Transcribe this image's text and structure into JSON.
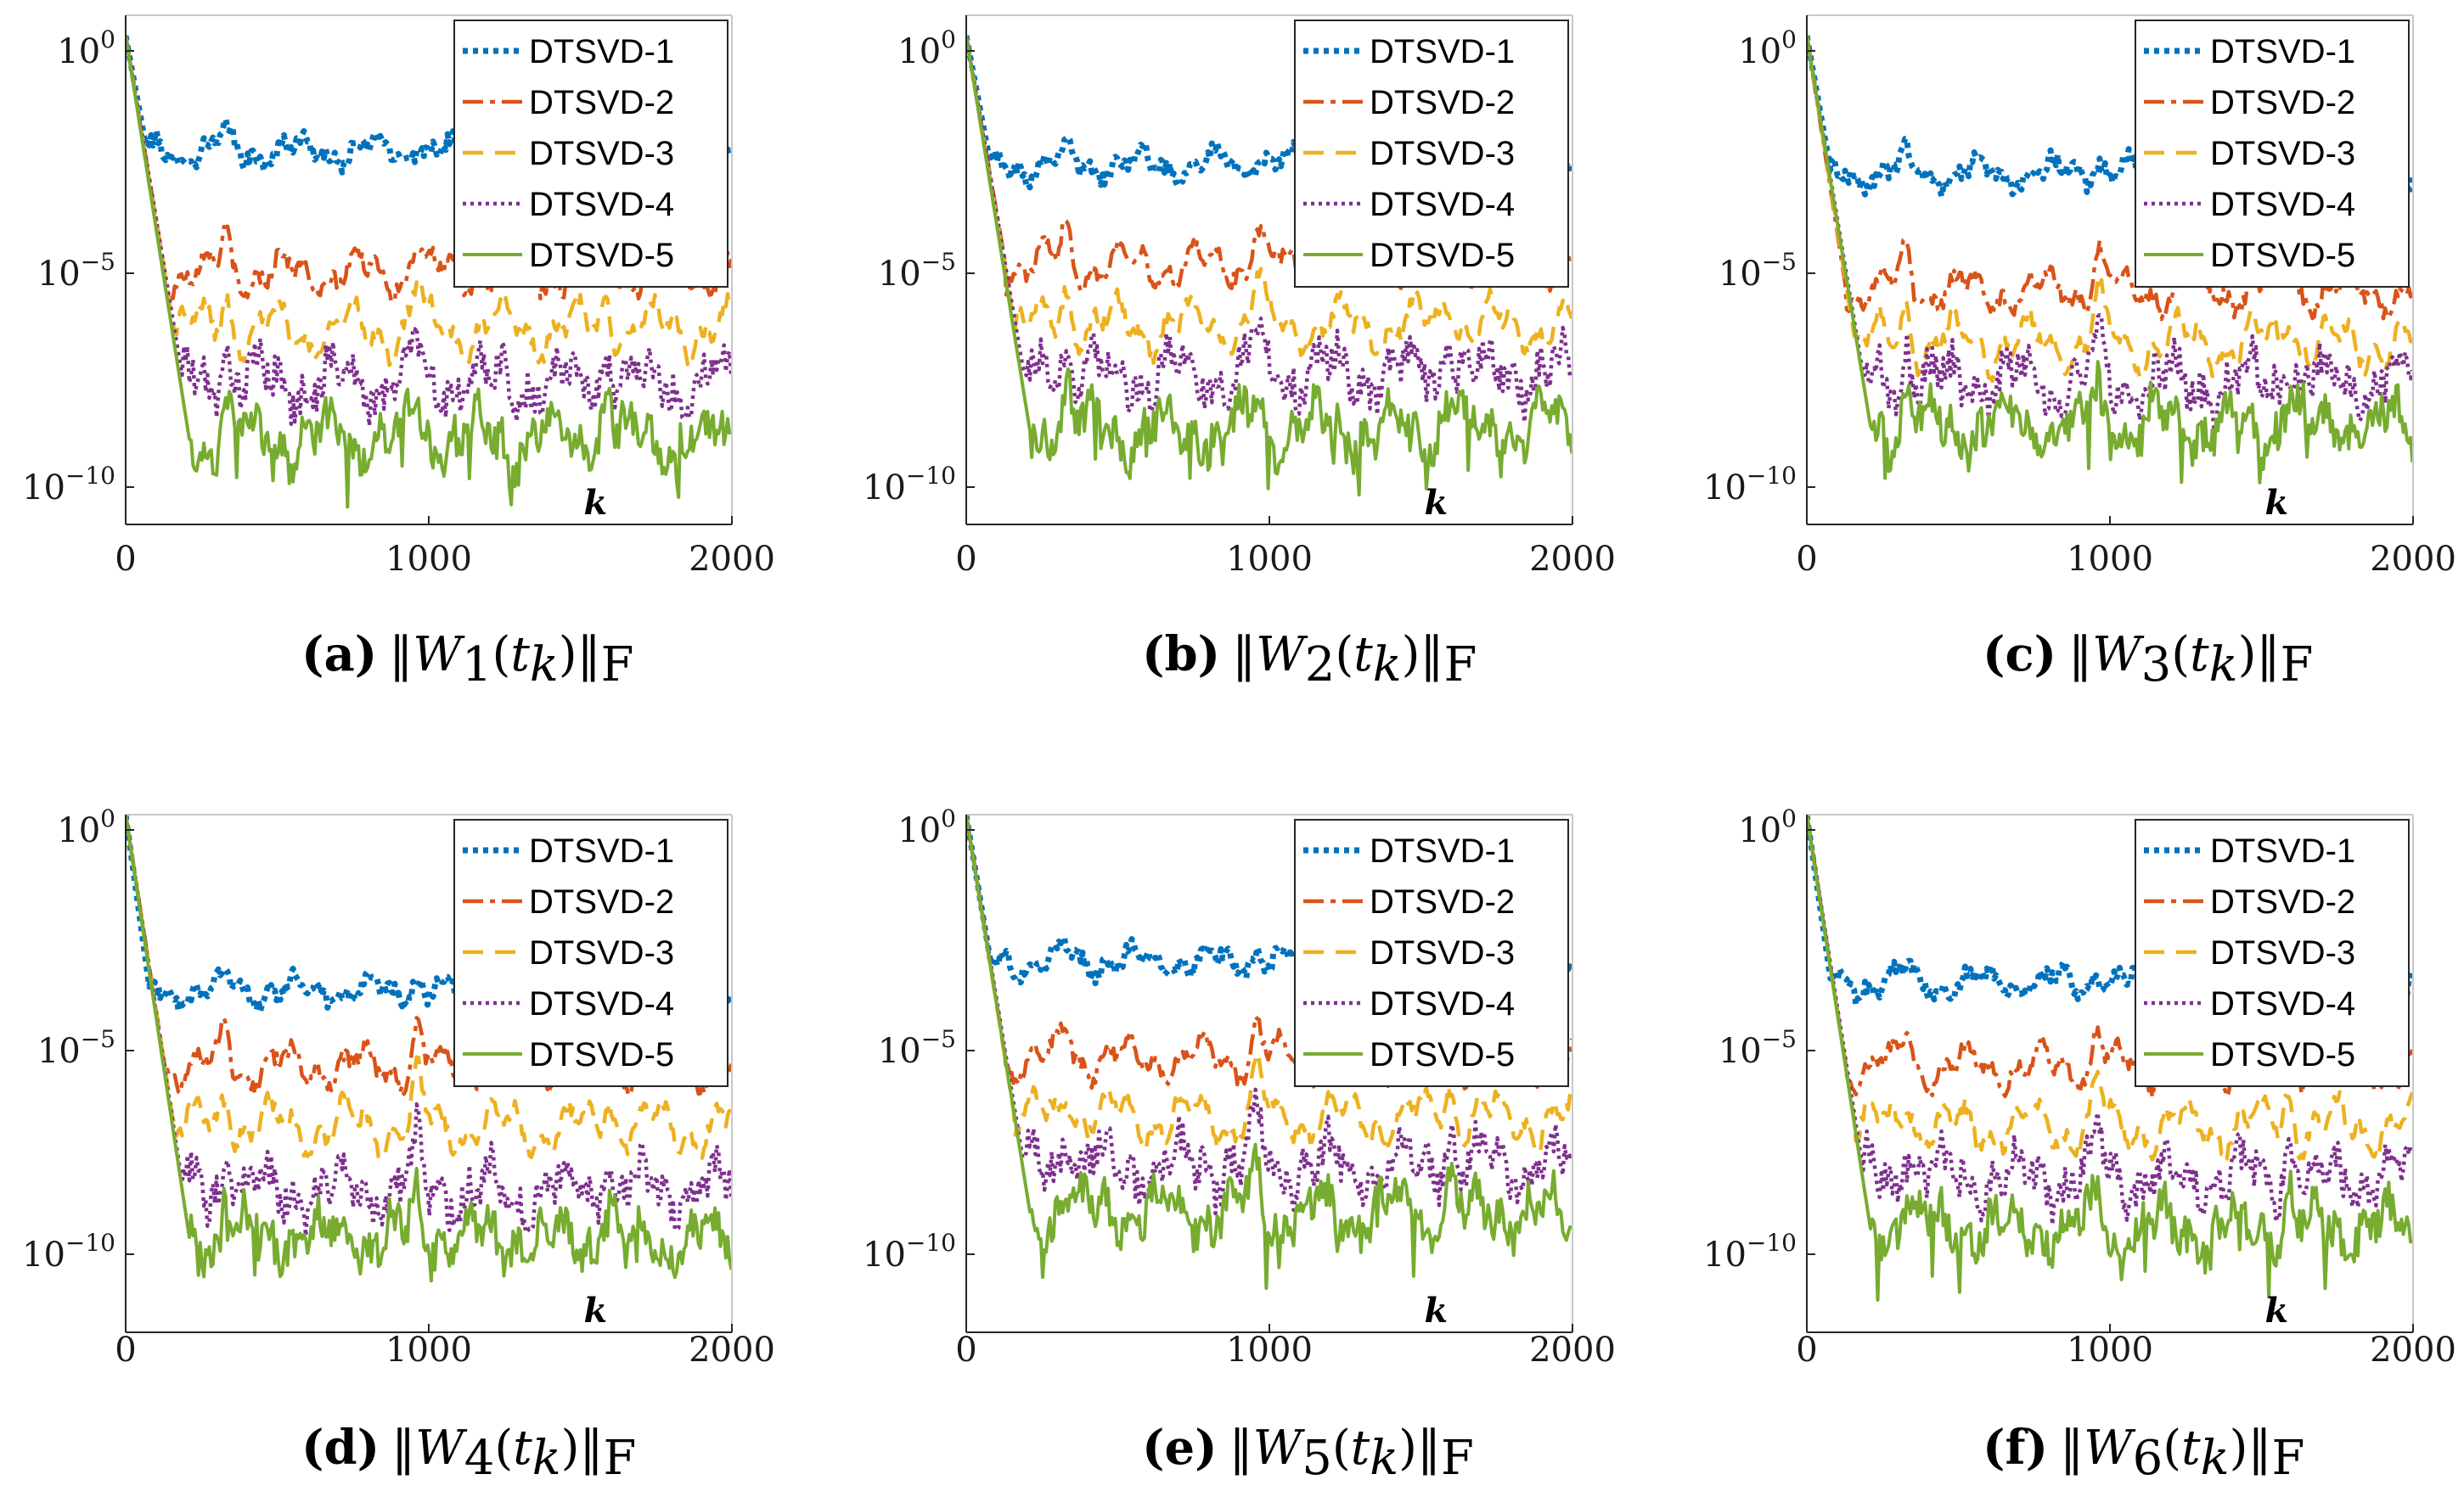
{
  "legend_entries": [
    "DTSVD-1",
    "DTSVD-2",
    "DTSVD-3",
    "DTSVD-4",
    "DTSVD-5"
  ],
  "series_colors": [
    "#0072BD",
    "#D95319",
    "#EDB120",
    "#7E2F8E",
    "#77AC30"
  ],
  "panels": [
    {
      "id": "a",
      "letter": "(a)",
      "sub": "1",
      "xlabel": "k",
      "y_tick_labels": [
        "10",
        "10",
        "10"
      ],
      "y_tick_exps": [
        "0",
        "−5",
        "−10"
      ],
      "x_tick_labels": [
        "0",
        "1000",
        "2000"
      ]
    },
    {
      "id": "b",
      "letter": "(b)",
      "sub": "2",
      "xlabel": "k",
      "y_tick_labels": [
        "10",
        "10",
        "10"
      ],
      "y_tick_exps": [
        "0",
        "−5",
        "−10"
      ],
      "x_tick_labels": [
        "0",
        "1000",
        "2000"
      ]
    },
    {
      "id": "c",
      "letter": "(c)",
      "sub": "3",
      "xlabel": "k",
      "y_tick_labels": [
        "10",
        "10",
        "10"
      ],
      "y_tick_exps": [
        "0",
        "−5",
        "−10"
      ],
      "x_tick_labels": [
        "0",
        "1000",
        "2000"
      ]
    },
    {
      "id": "d",
      "letter": "(d)",
      "sub": "4",
      "xlabel": "k",
      "y_tick_labels": [
        "10",
        "10",
        "10"
      ],
      "y_tick_exps": [
        "0",
        "−5",
        "−10"
      ],
      "x_tick_labels": [
        "0",
        "1000",
        "2000"
      ]
    },
    {
      "id": "e",
      "letter": "(e)",
      "sub": "5",
      "xlabel": "k",
      "y_tick_labels": [
        "10",
        "10",
        "10"
      ],
      "y_tick_exps": [
        "0",
        "−5",
        "−10"
      ],
      "x_tick_labels": [
        "0",
        "1000",
        "2000"
      ]
    },
    {
      "id": "f",
      "letter": "(f)",
      "sub": "6",
      "xlabel": "k",
      "y_tick_labels": [
        "10",
        "10",
        "10"
      ],
      "y_tick_exps": [
        "0",
        "−5",
        "−10"
      ],
      "x_tick_labels": [
        "0",
        "1000",
        "2000"
      ]
    }
  ],
  "chart_data": [
    {
      "type": "line",
      "yscale": "log",
      "xlim": [
        0,
        2000
      ],
      "ylim": [
        1e-11,
        1
      ],
      "series": [
        {
          "name": "DTSVD-1",
          "level_exp": -2.3,
          "decay_end": 70
        },
        {
          "name": "DTSVD-2",
          "level_exp": -5.1,
          "decay_end": 130
        },
        {
          "name": "DTSVD-3",
          "level_exp": -6.4,
          "decay_end": 160
        },
        {
          "name": "DTSVD-4",
          "level_exp": -7.6,
          "decay_end": 190
        },
        {
          "name": "DTSVD-5",
          "level_exp": -8.9,
          "decay_end": 210
        }
      ]
    },
    {
      "type": "line",
      "yscale": "log",
      "xlim": [
        0,
        2000
      ],
      "ylim": [
        1e-11,
        1
      ],
      "series": [
        {
          "name": "DTSVD-1",
          "level_exp": -2.6,
          "decay_end": 80
        },
        {
          "name": "DTSVD-2",
          "level_exp": -4.9,
          "decay_end": 130
        },
        {
          "name": "DTSVD-3",
          "level_exp": -6.3,
          "decay_end": 160
        },
        {
          "name": "DTSVD-4",
          "level_exp": -7.4,
          "decay_end": 190
        },
        {
          "name": "DTSVD-5",
          "level_exp": -8.7,
          "decay_end": 210
        }
      ]
    },
    {
      "type": "line",
      "yscale": "log",
      "xlim": [
        0,
        2000
      ],
      "ylim": [
        1e-11,
        1
      ],
      "series": [
        {
          "name": "DTSVD-1",
          "level_exp": -2.8,
          "decay_end": 80
        },
        {
          "name": "DTSVD-2",
          "level_exp": -5.5,
          "decay_end": 130
        },
        {
          "name": "DTSVD-3",
          "level_exp": -6.7,
          "decay_end": 160
        },
        {
          "name": "DTSVD-4",
          "level_exp": -7.6,
          "decay_end": 190
        },
        {
          "name": "DTSVD-5",
          "level_exp": -8.6,
          "decay_end": 210
        }
      ]
    },
    {
      "type": "line",
      "yscale": "log",
      "xlim": [
        0,
        2000
      ],
      "ylim": [
        1e-11,
        1
      ],
      "series": [
        {
          "name": "DTSVD-1",
          "level_exp": -3.8,
          "decay_end": 80
        },
        {
          "name": "DTSVD-2",
          "level_exp": -5.6,
          "decay_end": 130
        },
        {
          "name": "DTSVD-3",
          "level_exp": -7.0,
          "decay_end": 160
        },
        {
          "name": "DTSVD-4",
          "level_exp": -8.5,
          "decay_end": 190
        },
        {
          "name": "DTSVD-5",
          "level_exp": -9.6,
          "decay_end": 210
        }
      ]
    },
    {
      "type": "line",
      "yscale": "log",
      "xlim": [
        0,
        2000
      ],
      "ylim": [
        1e-11,
        1
      ],
      "series": [
        {
          "name": "DTSVD-1",
          "level_exp": -3.1,
          "decay_end": 80
        },
        {
          "name": "DTSVD-2",
          "level_exp": -5.4,
          "decay_end": 130
        },
        {
          "name": "DTSVD-3",
          "level_exp": -6.8,
          "decay_end": 160
        },
        {
          "name": "DTSVD-4",
          "level_exp": -7.9,
          "decay_end": 190
        },
        {
          "name": "DTSVD-5",
          "level_exp": -9.0,
          "decay_end": 210
        }
      ]
    },
    {
      "type": "line",
      "yscale": "log",
      "xlim": [
        0,
        2000
      ],
      "ylim": [
        1e-11,
        1
      ],
      "series": [
        {
          "name": "DTSVD-1",
          "level_exp": -3.6,
          "decay_end": 80
        },
        {
          "name": "DTSVD-2",
          "level_exp": -5.6,
          "decay_end": 130
        },
        {
          "name": "DTSVD-3",
          "level_exp": -7.0,
          "decay_end": 160
        },
        {
          "name": "DTSVD-4",
          "level_exp": -8.2,
          "decay_end": 190
        },
        {
          "name": "DTSVD-5",
          "level_exp": -9.4,
          "decay_end": 210
        }
      ]
    }
  ]
}
